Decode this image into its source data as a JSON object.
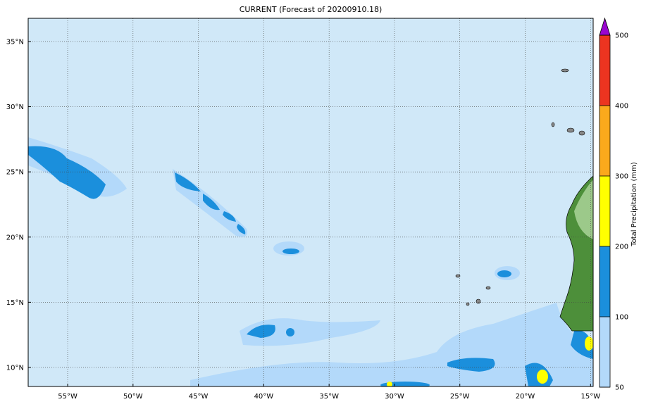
{
  "title": "CURRENT (Forecast of 20200910.18)",
  "map": {
    "lonlim": [
      -58.02,
      -14.8
    ],
    "latlim": [
      8.54,
      36.78
    ],
    "lon_ticks": [
      {
        "value": -55,
        "label": "55°W"
      },
      {
        "value": -50,
        "label": "50°W"
      },
      {
        "value": -45,
        "label": "45°W"
      },
      {
        "value": -40,
        "label": "40°W"
      },
      {
        "value": -35,
        "label": "35°W"
      },
      {
        "value": -30,
        "label": "30°W"
      },
      {
        "value": -25,
        "label": "25°W"
      },
      {
        "value": -20,
        "label": "20°W"
      },
      {
        "value": -15,
        "label": "15°W"
      }
    ],
    "lat_ticks": [
      {
        "value": 10,
        "label": "10°N"
      },
      {
        "value": 15,
        "label": "15°N"
      },
      {
        "value": 20,
        "label": "20°N"
      },
      {
        "value": 25,
        "label": "25°N"
      },
      {
        "value": 30,
        "label": "30°N"
      },
      {
        "value": 35,
        "label": "35°N"
      }
    ],
    "grid": true
  },
  "colorbar": {
    "label": "Total Precipitation (mm)",
    "levels": [
      50,
      100,
      200,
      300,
      400,
      500
    ],
    "colors": [
      "#b3d9fa",
      "#1b8fdc",
      "#ffff00",
      "#fba91c",
      "#ec3420"
    ],
    "extend_color": "#9a05d0"
  }
}
